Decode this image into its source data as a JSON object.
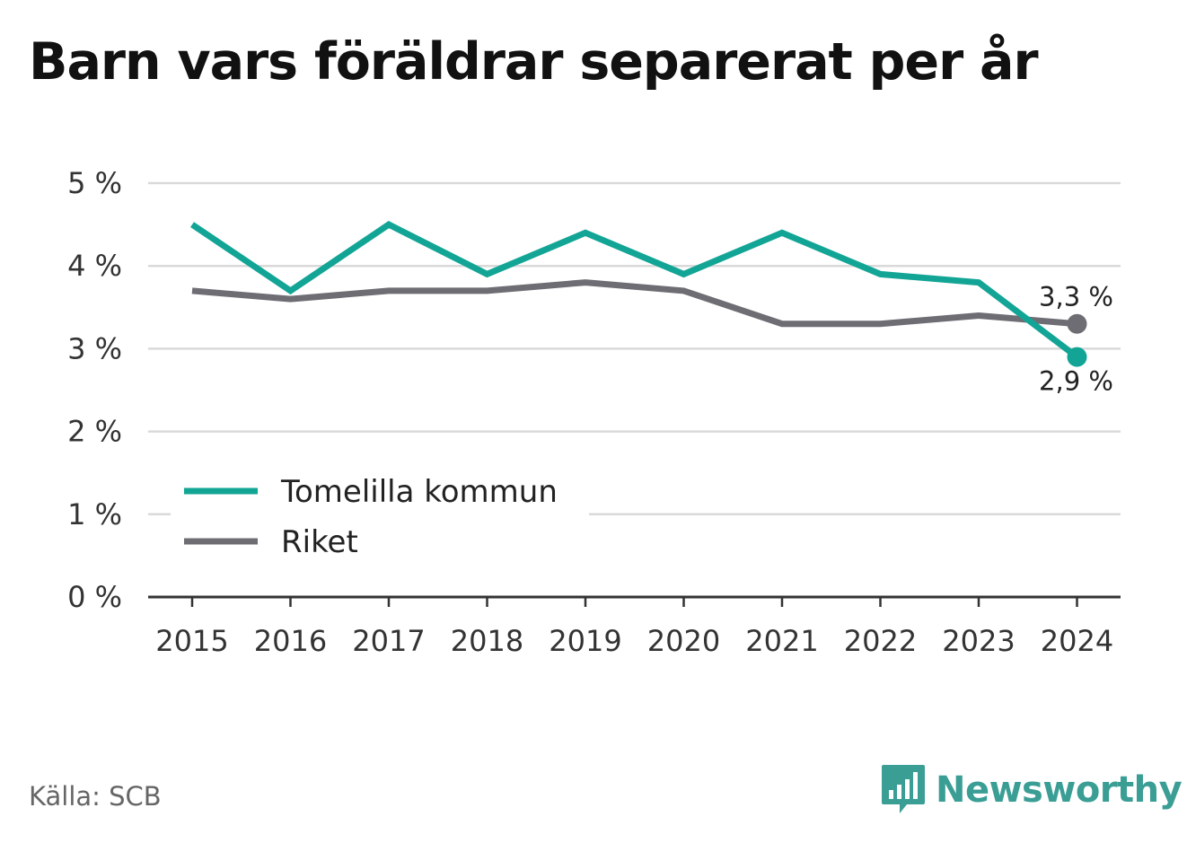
{
  "title": "Barn vars föräldrar separerat per år",
  "source": "Källa: SCB",
  "brand": {
    "name": "Newsworthy",
    "icon": "bar-chart-speech-bubble-icon",
    "color": "#3a9e95"
  },
  "chart_data": {
    "type": "line",
    "title": "Barn vars föräldrar separerat per år",
    "x": [
      "2015",
      "2016",
      "2017",
      "2018",
      "2019",
      "2020",
      "2021",
      "2022",
      "2023",
      "2024"
    ],
    "ylim": [
      0,
      5
    ],
    "y_ticks": [
      0,
      1,
      2,
      3,
      4,
      5
    ],
    "y_tick_labels": [
      "0 %",
      "1 %",
      "2 %",
      "3 %",
      "4 %",
      "5 %"
    ],
    "grid": true,
    "legend_position": "bottom-left",
    "series": [
      {
        "name": "Tomelilla kommun",
        "color": "#12a596",
        "values": [
          4.5,
          3.7,
          4.5,
          3.9,
          4.4,
          3.9,
          4.4,
          3.9,
          3.8,
          2.9
        ],
        "end_label": "2,9 %"
      },
      {
        "name": "Riket",
        "color": "#6e6d74",
        "values": [
          3.7,
          3.6,
          3.7,
          3.7,
          3.8,
          3.7,
          3.3,
          3.3,
          3.4,
          3.3
        ],
        "end_label": "3,3 %"
      }
    ]
  }
}
